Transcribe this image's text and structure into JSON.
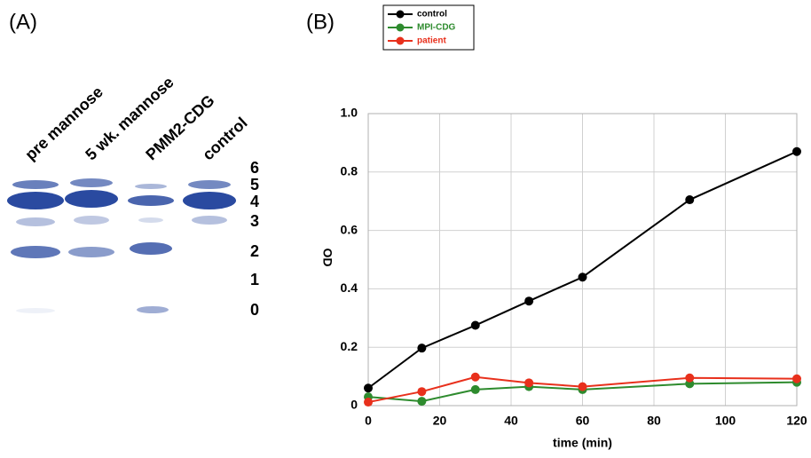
{
  "panels": [
    "(A)",
    "(B)"
  ],
  "gel": {
    "lanes": [
      "pre mannose",
      "5 wk. mannose",
      "PMM2-CDG",
      "control"
    ],
    "bands": [
      "6",
      "5",
      "4",
      "3",
      "2",
      "1",
      "0"
    ]
  },
  "chart_data": {
    "type": "line",
    "xlabel": "time (min)",
    "ylabel": "OD",
    "x": [
      0,
      15,
      30,
      45,
      60,
      90,
      120
    ],
    "series": [
      {
        "name": "control",
        "color": "#000000",
        "values": [
          0.06,
          0.197,
          0.275,
          0.358,
          0.44,
          0.705,
          0.87
        ]
      },
      {
        "name": "MPI-CDG",
        "color": "#2e8b2e",
        "values": [
          0.03,
          0.015,
          0.055,
          0.065,
          0.055,
          0.075,
          0.08
        ]
      },
      {
        "name": "patient",
        "color": "#e8301c",
        "values": [
          0.012,
          0.048,
          0.098,
          0.078,
          0.065,
          0.095,
          0.092
        ]
      }
    ],
    "xlim": [
      0,
      120
    ],
    "xticks": [
      0,
      20,
      40,
      60,
      80,
      100,
      120
    ],
    "ylim": [
      0,
      1
    ],
    "yticks": [
      0,
      0.2,
      0.4,
      0.6,
      0.8,
      {
        "value": 1,
        "label": "1.0"
      }
    ],
    "grid": true,
    "legend": "top-left"
  }
}
